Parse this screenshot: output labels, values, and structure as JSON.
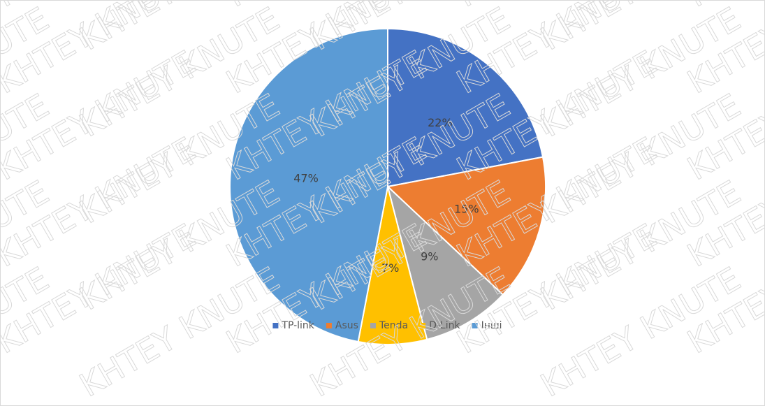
{
  "chart_data": {
    "type": "pie",
    "categories": [
      "TP-link",
      "Asus",
      "Tenda",
      "D-Link",
      "Інші"
    ],
    "values": [
      22,
      15,
      9,
      7,
      47
    ],
    "value_labels": [
      "22%",
      "15%",
      "9%",
      "7%",
      "47%"
    ],
    "colors": [
      "#4472c4",
      "#ed7d31",
      "#a5a5a5",
      "#ffc000",
      "#5b9bd5"
    ],
    "legend": "bottom"
  },
  "watermark": "KHTEY KNUTE"
}
